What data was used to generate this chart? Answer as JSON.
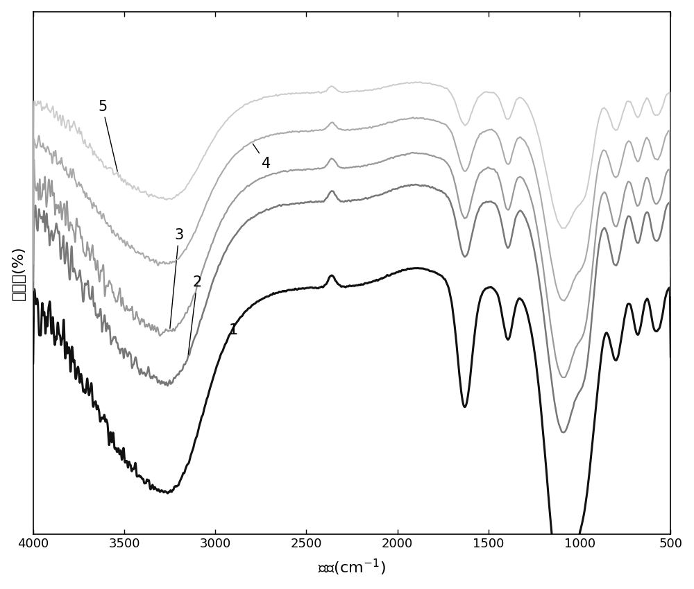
{
  "xlabel": "波数(cm⁻¹)",
  "ylabel": "透过率(%)",
  "xmin": 500,
  "xmax": 4000,
  "curve_colors": [
    "#111111",
    "#777777",
    "#999999",
    "#aaaaaa",
    "#cccccc"
  ],
  "curve_labels": [
    "1",
    "2",
    "3",
    "4",
    "5"
  ],
  "background_color": "#ffffff"
}
